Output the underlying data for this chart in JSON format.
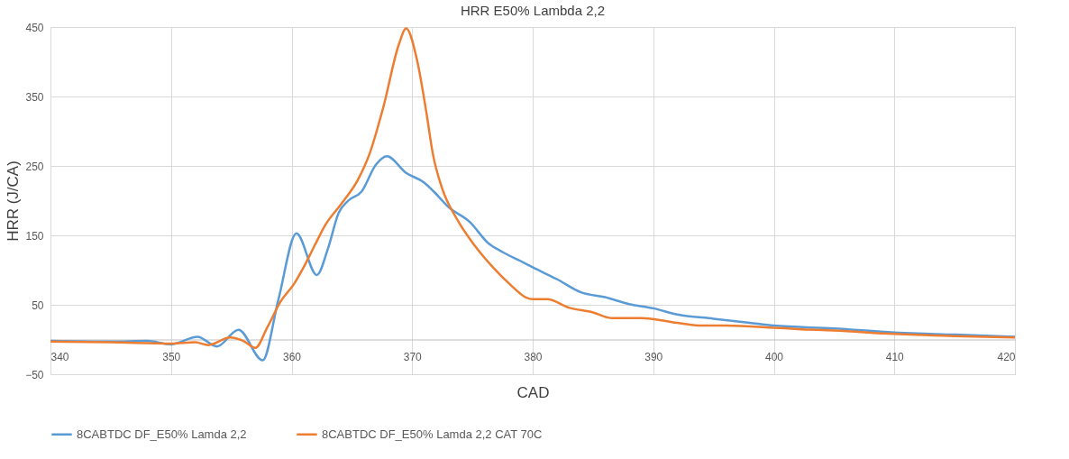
{
  "chart_data": {
    "type": "line",
    "title": "HRR E50% Lambda 2,2",
    "xlabel": "CAD",
    "ylabel": "HRR (J/CA)",
    "xlim": [
      340,
      420
    ],
    "xticks": [
      340,
      350,
      360,
      370,
      380,
      390,
      400,
      410,
      420
    ],
    "ylim": [
      -50,
      450
    ],
    "yticks": [
      -50,
      50,
      150,
      250,
      350,
      450
    ],
    "grid": true,
    "legend": "bottom",
    "line_style": "solid",
    "marker": "none",
    "series": [
      {
        "name": "8CABTDC DF_E50% Lamda 2,2",
        "color": "#5b9bd5",
        "x": [
          340,
          345,
          348,
          350,
          352.2,
          353.8,
          355.6,
          357.6,
          358.9,
          360.4,
          362.1,
          363,
          363.9,
          364.7,
          365.8,
          367,
          367.9,
          369.5,
          371,
          371.8,
          373,
          374.8,
          376.3,
          377.5,
          379,
          380,
          382,
          384,
          386,
          388,
          390,
          392,
          395,
          398,
          400,
          405,
          410,
          415,
          420
        ],
        "values": [
          -2,
          -3,
          -2,
          -7,
          4,
          -10,
          14,
          -30,
          57,
          153,
          93,
          130,
          182,
          200,
          213,
          252,
          264,
          240,
          226,
          213,
          191,
          169,
          139,
          126,
          113,
          104,
          87,
          68,
          61,
          51,
          45,
          36,
          30,
          24,
          20,
          16,
          10,
          7,
          4
        ]
      },
      {
        "name": "8CABTDC DF_E50% Lamda 2,2   CAT 70C",
        "color": "#ed7d31",
        "x": [
          340,
          345,
          350,
          352,
          353.1,
          354.9,
          356,
          357,
          358,
          359.1,
          360.2,
          361,
          361.9,
          362.8,
          364.2,
          365.5,
          366.5,
          367.6,
          368.9,
          369.5,
          370.4,
          371.2,
          371.7,
          372.5,
          373.7,
          375.2,
          376.7,
          378.2,
          379.4,
          380,
          381.2,
          383,
          385,
          386.5,
          389,
          392,
          394,
          396,
          400,
          402,
          405,
          410,
          415,
          420
        ],
        "values": [
          -3,
          -4,
          -6,
          -4,
          -8,
          3,
          -2,
          -12,
          18,
          55,
          80,
          104,
          135,
          165,
          197,
          230,
          269,
          334,
          425,
          448,
          403,
          325,
          269,
          217,
          174,
          135,
          104,
          78,
          61,
          58,
          58,
          46,
          39,
          31,
          31,
          24,
          20,
          20,
          17,
          15,
          13,
          8,
          5,
          3
        ]
      }
    ]
  }
}
